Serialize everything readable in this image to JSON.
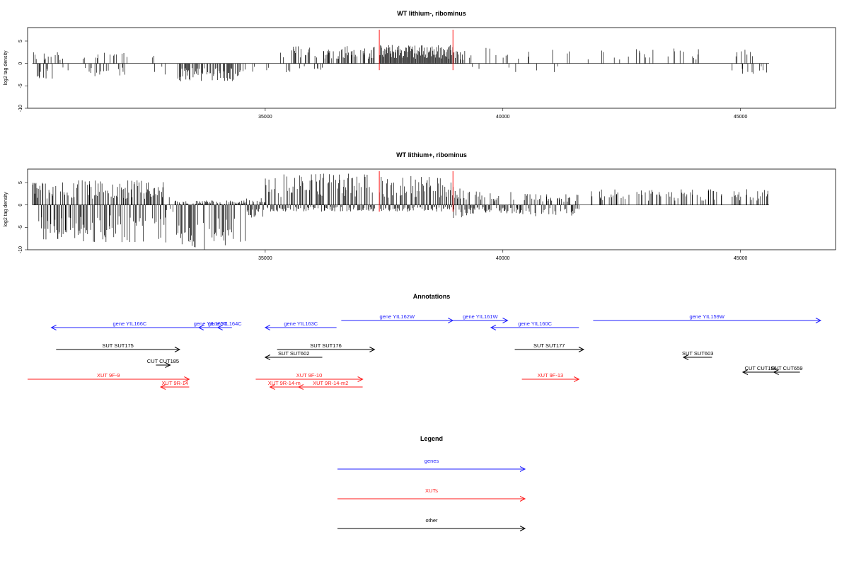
{
  "colors": {
    "genes": "#1f1fff",
    "xuts": "#ff1a1a",
    "other": "#000000",
    "marker": "#ff1a1a"
  },
  "chart_data": [
    {
      "type": "bar",
      "title": "WT lithium-, ribominus",
      "ylabel": "log2 tag density",
      "xlim": [
        30000,
        47000
      ],
      "ylim": [
        -10,
        8
      ],
      "y_ticks": [
        -10,
        -5,
        0,
        5
      ],
      "y_tick_labels": [
        "-10",
        "-5",
        "0",
        "5"
      ],
      "x_ticks": [
        35000,
        40000,
        45000
      ],
      "x_tick_labels": [
        "35000",
        "40000",
        "45000"
      ],
      "grid": false,
      "markers": [
        37400,
        38950
      ],
      "regions": [
        {
          "start": 30100,
          "end": 30900,
          "density": 0.45,
          "min": -3.5,
          "max": 2.5
        },
        {
          "start": 31100,
          "end": 32100,
          "density": 0.35,
          "min": -3,
          "max": 2.5
        },
        {
          "start": 32600,
          "end": 32950,
          "density": 0.3,
          "min": -2.5,
          "max": 2
        },
        {
          "start": 33100,
          "end": 34500,
          "density": 0.6,
          "min": -4,
          "max": 0.5
        },
        {
          "start": 34500,
          "end": 35100,
          "density": 0.2,
          "min": -2,
          "max": 0.5
        },
        {
          "start": 35300,
          "end": 36200,
          "density": 0.45,
          "min": -2,
          "max": 4
        },
        {
          "start": 36200,
          "end": 37300,
          "density": 0.6,
          "min": 0,
          "max": 4
        },
        {
          "start": 37400,
          "end": 38950,
          "density": 1.2,
          "min": 0,
          "max": 4.2
        },
        {
          "start": 38950,
          "end": 39200,
          "density": 0.6,
          "min": 0,
          "max": 3
        },
        {
          "start": 39300,
          "end": 41200,
          "density": 0.12,
          "min": -2,
          "max": 3.5
        },
        {
          "start": 41300,
          "end": 44300,
          "density": 0.12,
          "min": 0,
          "max": 3.5
        },
        {
          "start": 44700,
          "end": 45600,
          "density": 0.2,
          "min": -2.5,
          "max": 3.2
        }
      ]
    },
    {
      "type": "bar",
      "title": "WT lithium+, ribominus",
      "ylabel": "log2 tag density",
      "xlim": [
        30000,
        47000
      ],
      "ylim": [
        -10,
        8
      ],
      "y_ticks": [
        -10,
        -5,
        0,
        5
      ],
      "y_tick_labels": [
        "-10",
        "-5",
        "0",
        "5"
      ],
      "x_ticks": [
        35000,
        40000,
        45000
      ],
      "x_tick_labels": [
        "35000",
        "40000",
        "45000"
      ],
      "grid": false,
      "markers": [
        37400,
        38950
      ],
      "regions": [
        {
          "start": 30100,
          "end": 32900,
          "density": 3.0,
          "min": -8.5,
          "max": 5.5
        },
        {
          "start": 32900,
          "end": 33100,
          "density": 0.6,
          "min": -2,
          "max": 2
        },
        {
          "start": 33100,
          "end": 34600,
          "density": 3.0,
          "min": -10,
          "max": 1
        },
        {
          "start": 34600,
          "end": 35000,
          "density": 1.0,
          "min": -3,
          "max": 1.5
        },
        {
          "start": 35000,
          "end": 37300,
          "density": 3.0,
          "min": -1.5,
          "max": 7
        },
        {
          "start": 37400,
          "end": 38950,
          "density": 3.0,
          "min": -1.5,
          "max": 6.5
        },
        {
          "start": 38950,
          "end": 39300,
          "density": 1.5,
          "min": -3,
          "max": 4
        },
        {
          "start": 39300,
          "end": 40400,
          "density": 0.8,
          "min": -2,
          "max": 3
        },
        {
          "start": 40400,
          "end": 41600,
          "density": 0.8,
          "min": -2.5,
          "max": 2.5
        },
        {
          "start": 41800,
          "end": 44600,
          "density": 0.35,
          "min": 0,
          "max": 3.5
        },
        {
          "start": 44800,
          "end": 45600,
          "density": 0.4,
          "min": 0,
          "max": 3.8
        }
      ]
    }
  ],
  "annotations": {
    "title": "Annotations",
    "features": [
      {
        "label": "gene YIL166C",
        "start": 30500,
        "end": 33800,
        "dir": "left",
        "kind": "gene",
        "row": 2
      },
      {
        "label": "gene YIL165C",
        "start": 33600,
        "end": 34100,
        "dir": "left",
        "kind": "gene",
        "row": 2
      },
      {
        "label": "gene YIL164C",
        "start": 34000,
        "end": 34300,
        "dir": "left",
        "kind": "gene",
        "row": 2
      },
      {
        "label": "gene YIL163C",
        "start": 35000,
        "end": 36500,
        "dir": "left",
        "kind": "gene",
        "row": 2
      },
      {
        "label": "gene YIL162W",
        "start": 36600,
        "end": 38950,
        "dir": "right",
        "kind": "gene",
        "row": 1
      },
      {
        "label": "gene YIL161W",
        "start": 38950,
        "end": 40100,
        "dir": "right",
        "kind": "gene",
        "row": 1
      },
      {
        "label": "gene YIL160C",
        "start": 39750,
        "end": 41600,
        "dir": "left",
        "kind": "gene",
        "row": 2
      },
      {
        "label": "gene YIL159W",
        "start": 41900,
        "end": 47000,
        "dir": "right",
        "kind": "gene",
        "row": 1
      },
      {
        "label": "SUT SUT175",
        "start": 30600,
        "end": 33200,
        "dir": "right",
        "kind": "other",
        "row": 4
      },
      {
        "label": "CUT CUT185",
        "start": 32700,
        "end": 33000,
        "dir": "right",
        "kind": "other",
        "row": 6
      },
      {
        "label": "SUT SUT176",
        "start": 35250,
        "end": 37300,
        "dir": "right",
        "kind": "other",
        "row": 4
      },
      {
        "label": "SUT SUT602",
        "start": 35000,
        "end": 36200,
        "dir": "left",
        "kind": "other",
        "row": 5
      },
      {
        "label": "SUT SUT177",
        "start": 40250,
        "end": 41700,
        "dir": "right",
        "kind": "other",
        "row": 4
      },
      {
        "label": "SUT SUT603",
        "start": 43800,
        "end": 44400,
        "dir": "left",
        "kind": "other",
        "row": 5
      },
      {
        "label": "CUT CUT186",
        "start": 45050,
        "end": 45800,
        "dir": "left",
        "kind": "other",
        "row": 7
      },
      {
        "label": "SUT CUT659",
        "start": 45700,
        "end": 46250,
        "dir": "left",
        "kind": "other",
        "row": 7
      },
      {
        "label": "XUT 9F-9",
        "start": 30000,
        "end": 33400,
        "dir": "right",
        "kind": "xut",
        "row": 8
      },
      {
        "label": "XUT 9R-14",
        "start": 32800,
        "end": 33400,
        "dir": "left",
        "kind": "xut",
        "row": 9
      },
      {
        "label": "XUT 9F-10",
        "start": 34800,
        "end": 37050,
        "dir": "right",
        "kind": "xut",
        "row": 8
      },
      {
        "label": "XUT 9R-14-m",
        "start": 35100,
        "end": 35700,
        "dir": "left",
        "kind": "xut",
        "row": 9
      },
      {
        "label": "XUT 9R-14-m2",
        "start": 35700,
        "end": 37050,
        "dir": "left",
        "kind": "xut",
        "row": 9
      },
      {
        "label": "XUT 9F-13",
        "start": 40400,
        "end": 41600,
        "dir": "right",
        "kind": "xut",
        "row": 8
      }
    ]
  },
  "legend": {
    "title": "Legend",
    "items": [
      {
        "label": "genes",
        "kind": "gene"
      },
      {
        "label": "XUTs",
        "kind": "xut"
      },
      {
        "label": "other",
        "kind": "other"
      }
    ]
  }
}
